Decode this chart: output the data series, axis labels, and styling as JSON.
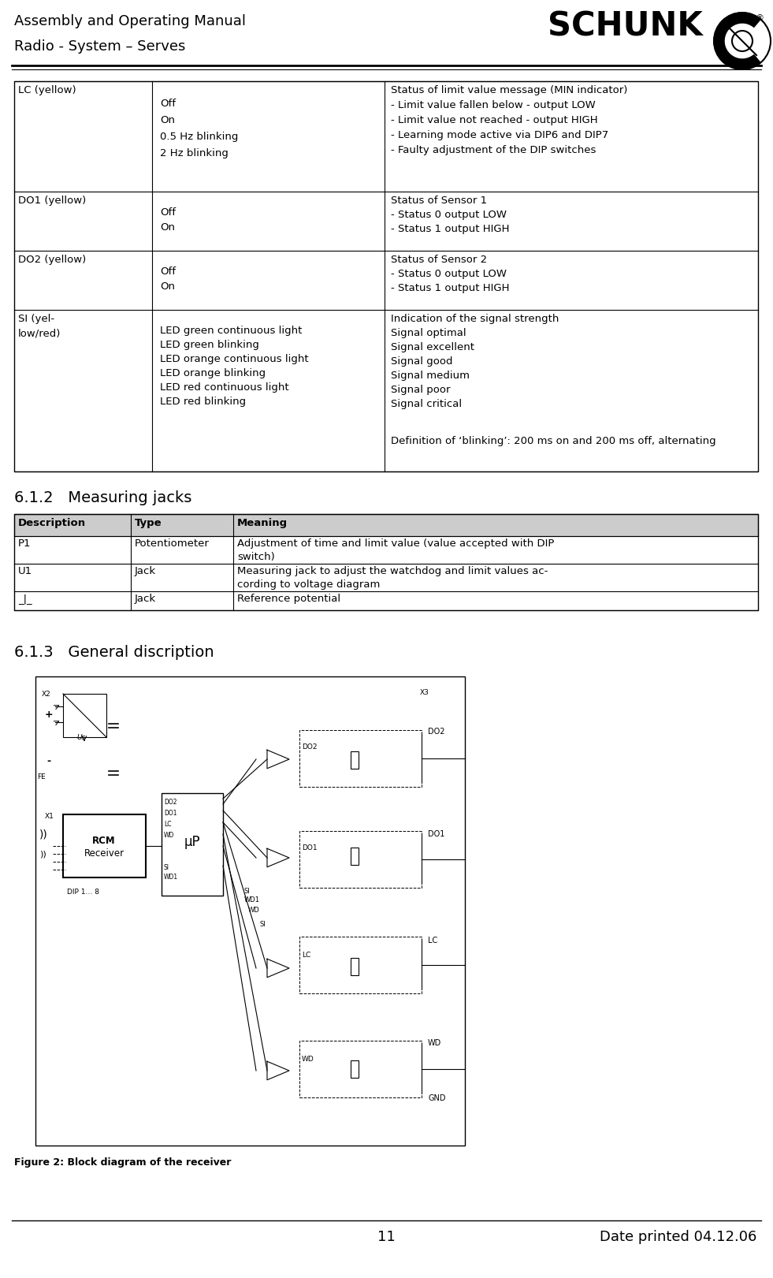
{
  "header_line1": "Assembly and Operating Manual",
  "header_line2": "Radio - System – Serves",
  "footer_page": "11",
  "footer_date": "Date printed 04.12.06",
  "section1_title": "6.1.2   Measuring jacks",
  "section2_title": "6.1.3   General discription",
  "figure_caption": "Figure 2: Block diagram of the receiver",
  "table1_rows": [
    [
      "LC (yellow)",
      "Off\nOn\n0.5 Hz blinking\n2 Hz blinking",
      "Status of limit value message (MIN indicator)\n- Limit value fallen below - output LOW\n- Limit value not reached - output HIGH\n- Learning mode active via DIP6 and DIP7\n- Faulty adjustment of the DIP switches"
    ],
    [
      "DO1 (yellow)",
      "Off\nOn",
      "Status of Sensor 1\n- Status 0 output LOW\n- Status 1 output HIGH"
    ],
    [
      "DO2 (yellow)",
      "Off\nOn",
      "Status of Sensor 2\n- Status 0 output LOW\n- Status 1 output HIGH"
    ],
    [
      "SI (yel-\nlow/red)",
      "LED green continuous light\nLED green blinking\nLED orange continuous light\nLED orange blinking\nLED red continuous light\nLED red blinking",
      "Indication of the signal strength\nSignal optimal\nSignal excellent\nSignal good\nSignal medium\nSignal poor\nSignal critical\n\nDefinition of ‘blinking’: 200 ms on and 200 ms off, alternating"
    ]
  ],
  "table2_headers": [
    "Description",
    "Type",
    "Meaning"
  ],
  "table2_rows": [
    [
      "P1",
      "Potentiometer",
      "Adjustment of time and limit value (value accepted with DIP\nswitch)"
    ],
    [
      "U1",
      "Jack",
      "Measuring jack to adjust the watchdog and limit values ac-\ncording to voltage diagram"
    ],
    [
      "⊥",
      "Jack",
      "Reference potential"
    ]
  ],
  "bg_color": "#ffffff",
  "text_color": "#000000"
}
